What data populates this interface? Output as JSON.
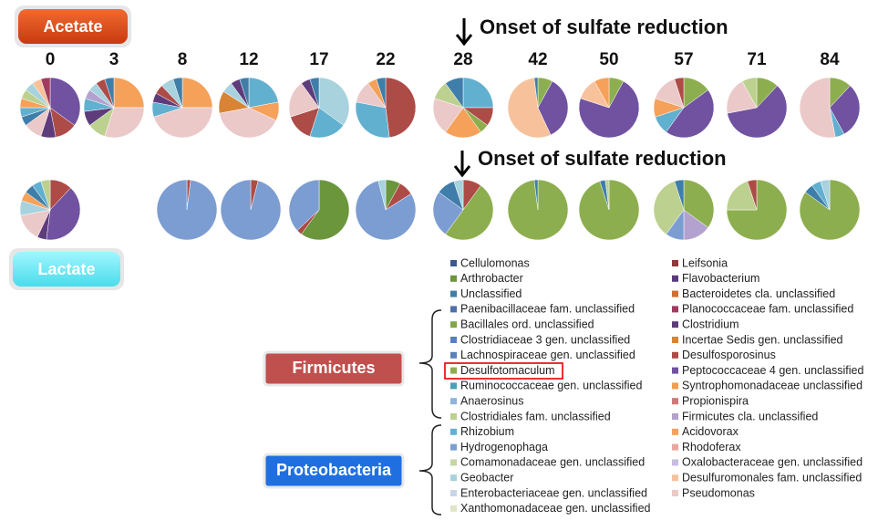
{
  "labels": {
    "acetate": "Acetate",
    "lactate": "Lactate",
    "onset_top": "Onset of sulfate reduction",
    "onset_bottom": "Onset of sulfate reduction",
    "firmicutes": "Firmicutes",
    "proteobacteria": "Proteobacteria"
  },
  "legend": {
    "left": [
      {
        "name": "Cellulomonas",
        "color": "#3a5a8c"
      },
      {
        "name": "Arthrobacter",
        "color": "#6b963c"
      },
      {
        "name": "Unclassified",
        "color": "#3f7ea8"
      },
      {
        "name": "Paenibacillaceae fam. unclassified",
        "color": "#4f6fa8"
      },
      {
        "name": "Bacillales ord. unclassified",
        "color": "#7fa64a"
      },
      {
        "name": "Clostridiaceae 3 gen. unclassified",
        "color": "#5a7fc0"
      },
      {
        "name": "Lachnospiraceae gen. unclassified",
        "color": "#5c80b8"
      },
      {
        "name": "Desulfotomaculum",
        "color": "#8dae4f"
      },
      {
        "name": "Ruminococcaceae gen. unclassified",
        "color": "#4aa0b8"
      },
      {
        "name": "Anaerosinus",
        "color": "#8fb4dc"
      },
      {
        "name": "Clostridiales fam. unclassified",
        "color": "#bcd08f"
      },
      {
        "name": "Rhizobium",
        "color": "#62b0d0"
      },
      {
        "name": "Hydrogenophaga",
        "color": "#7c9dd2"
      },
      {
        "name": "Comamonadaceae gen. unclassified",
        "color": "#c4d6a4"
      },
      {
        "name": "Geobacter",
        "color": "#a7d2de"
      },
      {
        "name": "Enterobacteriaceae gen. unclassified",
        "color": "#c8d4e8"
      },
      {
        "name": "Xanthomonadaceae gen. unclassified",
        "color": "#dde6c8"
      }
    ],
    "right": [
      {
        "name": "Leifsonia",
        "color": "#8c3a3a"
      },
      {
        "name": "Flavobacterium",
        "color": "#5a3a7c"
      },
      {
        "name": "Bacteroidetes cla. unclassified",
        "color": "#d07030"
      },
      {
        "name": "Planococcaceae fam. unclassified",
        "color": "#a03a60"
      },
      {
        "name": "Clostridium",
        "color": "#5e3c7c"
      },
      {
        "name": "Incertae Sedis gen. unclassified",
        "color": "#d88434"
      },
      {
        "name": "Desulfosporosinus",
        "color": "#ad4b47"
      },
      {
        "name": "Peptococcaceae 4 gen. unclassified",
        "color": "#7052a0"
      },
      {
        "name": "Syntrophomonadaceae unclassified",
        "color": "#f0a050"
      },
      {
        "name": "Propionispira",
        "color": "#d07878"
      },
      {
        "name": "Firmicutes cla. unclassified",
        "color": "#b3a2cf"
      },
      {
        "name": "Acidovorax",
        "color": "#f5a15a"
      },
      {
        "name": "Rhodoferax",
        "color": "#e8a8a0"
      },
      {
        "name": "Oxalobacteraceae gen. unclassified",
        "color": "#c8bce0"
      },
      {
        "name": "Desulfuromonales fam. unclassified",
        "color": "#f7c29b"
      },
      {
        "name": "Pseudomonas",
        "color": "#ebc9c9"
      }
    ]
  },
  "chart_data": [
    {
      "type": "pie",
      "title": "0",
      "values": [
        35,
        12,
        8,
        10,
        5,
        5,
        5,
        5,
        5,
        5,
        5
      ],
      "colors": [
        "#7052a0",
        "#ad4b47",
        "#5e3c7c",
        "#ebc9c9",
        "#3f7ea8",
        "#62b0d0",
        "#f5a15a",
        "#bcd08f",
        "#a7d2de",
        "#f7c29b",
        "#a03a60"
      ]
    },
    {
      "type": "pie",
      "title": "3",
      "values": [
        25,
        30,
        10,
        8,
        7,
        5,
        5,
        5,
        5
      ],
      "colors": [
        "#f5a15a",
        "#ebc9c9",
        "#bcd08f",
        "#5e3c7c",
        "#62b0d0",
        "#b3a2cf",
        "#a7d2de",
        "#ad4b47",
        "#3f7ea8"
      ]
    },
    {
      "type": "pie",
      "title": "8",
      "values": [
        25,
        45,
        8,
        5,
        5,
        7,
        5
      ],
      "colors": [
        "#f5a15a",
        "#ebc9c9",
        "#62b0d0",
        "#5e3c7c",
        "#ad4b47",
        "#a7d2de",
        "#3f7ea8"
      ]
    },
    {
      "type": "pie",
      "title": "12",
      "values": [
        22,
        10,
        40,
        12,
        6,
        5,
        5
      ],
      "colors": [
        "#62b0d0",
        "#f5a15a",
        "#ebc9c9",
        "#d88434",
        "#a7d2de",
        "#5e3c7c",
        "#3f7ea8"
      ]
    },
    {
      "type": "pie",
      "title": "17",
      "values": [
        35,
        20,
        15,
        20,
        5,
        5
      ],
      "colors": [
        "#a7d2de",
        "#62b0d0",
        "#ad4b47",
        "#ebc9c9",
        "#5e3c7c",
        "#3f7ea8"
      ]
    },
    {
      "type": "pie",
      "title": "22",
      "values": [
        48,
        30,
        12,
        5,
        5
      ],
      "colors": [
        "#ad4b47",
        "#62b0d0",
        "#ebc9c9",
        "#f5a15a",
        "#3f7ea8"
      ]
    },
    {
      "type": "pie",
      "title": "28",
      "values": [
        25,
        10,
        5,
        20,
        20,
        10,
        10
      ],
      "colors": [
        "#62b0d0",
        "#ad4b47",
        "#8dae4f",
        "#f5a15a",
        "#ebc9c9",
        "#bcd08f",
        "#3f7ea8"
      ]
    },
    {
      "type": "pie",
      "title": "42",
      "values": [
        8,
        35,
        55,
        2
      ],
      "colors": [
        "#8dae4f",
        "#7052a0",
        "#f7c29b",
        "#3f7ea8"
      ]
    },
    {
      "type": "pie",
      "title": "50",
      "values": [
        8,
        72,
        12,
        8
      ],
      "colors": [
        "#8dae4f",
        "#7052a0",
        "#f7c29b",
        "#f5a15a"
      ]
    },
    {
      "type": "pie",
      "title": "57",
      "values": [
        15,
        45,
        10,
        10,
        15,
        5
      ],
      "colors": [
        "#8dae4f",
        "#7052a0",
        "#62b0d0",
        "#f5a15a",
        "#ebc9c9",
        "#ad4b47"
      ]
    },
    {
      "type": "pie",
      "title": "71",
      "values": [
        12,
        60,
        20,
        8
      ],
      "colors": [
        "#8dae4f",
        "#7052a0",
        "#ebc9c9",
        "#bcd08f"
      ]
    },
    {
      "type": "pie",
      "title": "84",
      "values": [
        12,
        30,
        5,
        53
      ],
      "colors": [
        "#8dae4f",
        "#7052a0",
        "#62b0d0",
        "#ebc9c9"
      ]
    },
    {
      "type": "pie",
      "values": [
        12,
        40,
        5,
        15,
        8,
        5,
        5,
        5,
        5
      ],
      "colors": [
        "#ad4b47",
        "#7052a0",
        "#5e3c7c",
        "#ebc9c9",
        "#a7d2de",
        "#f5a15a",
        "#3f7ea8",
        "#62b0d0",
        "#bcd08f"
      ]
    },
    {
      "type": "pie",
      "values": [
        2,
        98
      ],
      "colors": [
        "#ad4b47",
        "#7c9dd2"
      ]
    },
    {
      "type": "pie",
      "values": [
        4,
        96
      ],
      "colors": [
        "#ad4b47",
        "#7c9dd2"
      ]
    },
    {
      "type": "pie",
      "values": [
        60,
        3,
        37
      ],
      "colors": [
        "#6b963c",
        "#ad4b47",
        "#7c9dd2"
      ]
    },
    {
      "type": "pie",
      "values": [
        8,
        8,
        80,
        4
      ],
      "colors": [
        "#6b963c",
        "#ad4b47",
        "#7c9dd2",
        "#a7d2de"
      ]
    },
    {
      "type": "pie",
      "values": [
        10,
        50,
        25,
        10,
        5
      ],
      "colors": [
        "#ad4b47",
        "#8dae4f",
        "#7c9dd2",
        "#3f7ea8",
        "#a7d2de"
      ]
    },
    {
      "type": "pie",
      "values": [
        98,
        2
      ],
      "colors": [
        "#8dae4f",
        "#3f7ea8"
      ]
    },
    {
      "type": "pie",
      "values": [
        95,
        3,
        2
      ],
      "colors": [
        "#8dae4f",
        "#3f7ea8",
        "#bcd08f"
      ]
    },
    {
      "type": "pie",
      "values": [
        35,
        15,
        10,
        35,
        5
      ],
      "colors": [
        "#8dae4f",
        "#b3a2cf",
        "#7c9dd2",
        "#bcd08f",
        "#3f7ea8"
      ]
    },
    {
      "type": "pie",
      "values": [
        75,
        20,
        5
      ],
      "colors": [
        "#8dae4f",
        "#bcd08f",
        "#ad4b47"
      ]
    },
    {
      "type": "pie",
      "values": [
        85,
        5,
        5,
        5
      ],
      "colors": [
        "#8dae4f",
        "#3f7ea8",
        "#62b0d0",
        "#a7d2de"
      ]
    }
  ]
}
